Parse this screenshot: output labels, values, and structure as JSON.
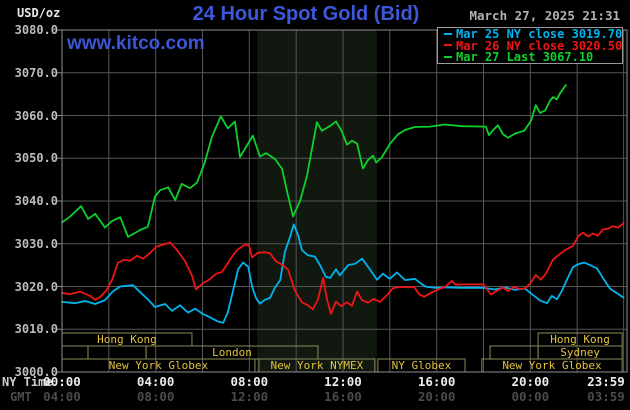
{
  "header": {
    "units_label": "USD/oz",
    "title": "24 Hour Spot Gold (Bid)",
    "datetime": "March 27, 2025 21:31",
    "watermark": "www.kitco.com"
  },
  "legend": {
    "items": [
      {
        "label": "Mar 25 NY close 3019.70",
        "color": "#00b4ee"
      },
      {
        "label": "Mar 26 NY close 3020.50",
        "color": "#ee1515"
      },
      {
        "label": "Mar 27 Last 3067.10",
        "color": "#0ed02a"
      }
    ]
  },
  "axes": {
    "y_ticks": [
      "3080.0",
      "3070.0",
      "3060.0",
      "3050.0",
      "3040.0",
      "3030.0",
      "3020.0",
      "3010.0",
      "3000.0"
    ],
    "x_row1_label": "NY Time",
    "x_row2_label": "GMT",
    "x_row1_ticks": [
      "00:00",
      "04:00",
      "08:00",
      "12:00",
      "16:00",
      "20:00",
      "23:59"
    ],
    "x_row2_ticks": [
      "04:00",
      "08:00",
      "12:00",
      "16:00",
      "20:00",
      "00:00",
      "03:59"
    ],
    "x_tick_hours": [
      0,
      4,
      8,
      12,
      16,
      20,
      23.983
    ]
  },
  "colors": {
    "background": "#000000",
    "grid": "#555555",
    "plot_border": "#8e8e8e",
    "band_fill": "#101810",
    "session_border": "#8b8b5a",
    "session_text": "#e2c23d",
    "title_blue": "#3c59dc",
    "mar25_cyan": "#00b4ee",
    "mar26_red": "#ee1515",
    "mar27_green": "#0ed02a"
  },
  "chart_data": {
    "type": "line",
    "title": "24 Hour Spot Gold (Bid)",
    "ylabel": "USD/oz",
    "ylim": [
      3000,
      3080
    ],
    "x_unit": "minutes NY time 00:00-23:59",
    "grid": true,
    "legend_position": "top-right",
    "highlight_band_hours": [
      8.33,
      13.45
    ],
    "series": [
      {
        "name": "Mar 25 (NY close 3019.70)",
        "color": "#00b4ee",
        "points": [
          [
            0,
            3016.4
          ],
          [
            33,
            3016.1
          ],
          [
            59,
            3016.6
          ],
          [
            85,
            3015.9
          ],
          [
            110,
            3016.8
          ],
          [
            131,
            3018.9
          ],
          [
            149,
            3020.0
          ],
          [
            182,
            3020.3
          ],
          [
            200,
            3018.7
          ],
          [
            220,
            3017.0
          ],
          [
            238,
            3015.2
          ],
          [
            264,
            3015.9
          ],
          [
            282,
            3014.3
          ],
          [
            302,
            3015.6
          ],
          [
            323,
            3013.9
          ],
          [
            341,
            3014.8
          ],
          [
            361,
            3013.6
          ],
          [
            379,
            3012.8
          ],
          [
            400,
            3011.8
          ],
          [
            413,
            3011.5
          ],
          [
            425,
            3014.0
          ],
          [
            441,
            3020.0
          ],
          [
            451,
            3024.0
          ],
          [
            464,
            3025.6
          ],
          [
            477,
            3024.6
          ],
          [
            487,
            3020.0
          ],
          [
            497,
            3017.3
          ],
          [
            507,
            3016.0
          ],
          [
            520,
            3016.9
          ],
          [
            533,
            3017.3
          ],
          [
            546,
            3019.8
          ],
          [
            559,
            3021.5
          ],
          [
            571,
            3028.0
          ],
          [
            584,
            3031.5
          ],
          [
            594,
            3034.5
          ],
          [
            605,
            3032.0
          ],
          [
            615,
            3028.5
          ],
          [
            630,
            3027.3
          ],
          [
            648,
            3027.0
          ],
          [
            661,
            3025.0
          ],
          [
            676,
            3022.3
          ],
          [
            687,
            3022.0
          ],
          [
            702,
            3024.0
          ],
          [
            712,
            3022.6
          ],
          [
            733,
            3025.0
          ],
          [
            751,
            3025.3
          ],
          [
            769,
            3026.5
          ],
          [
            789,
            3024.0
          ],
          [
            807,
            3021.6
          ],
          [
            822,
            3023.0
          ],
          [
            840,
            3021.8
          ],
          [
            858,
            3023.3
          ],
          [
            879,
            3021.5
          ],
          [
            904,
            3021.8
          ],
          [
            930,
            3020.0
          ],
          [
            956,
            3019.7
          ],
          [
            981,
            3019.8
          ],
          [
            1020,
            3019.7
          ],
          [
            1080,
            3019.7
          ],
          [
            1109,
            3019.3
          ],
          [
            1135,
            3019.8
          ],
          [
            1161,
            3019.2
          ],
          [
            1186,
            3019.5
          ],
          [
            1207,
            3018.0
          ],
          [
            1225,
            3016.7
          ],
          [
            1243,
            3016.1
          ],
          [
            1255,
            3017.8
          ],
          [
            1268,
            3017.0
          ],
          [
            1281,
            3019.0
          ],
          [
            1296,
            3022.0
          ],
          [
            1309,
            3024.5
          ],
          [
            1322,
            3025.2
          ],
          [
            1338,
            3025.6
          ],
          [
            1353,
            3025.0
          ],
          [
            1371,
            3024.2
          ],
          [
            1386,
            3022.0
          ],
          [
            1404,
            3019.5
          ],
          [
            1422,
            3018.4
          ],
          [
            1439,
            3017.4
          ]
        ]
      },
      {
        "name": "Mar 26 (NY close 3020.50)",
        "color": "#ee1515",
        "points": [
          [
            0,
            3018.5
          ],
          [
            20,
            3018.2
          ],
          [
            46,
            3018.8
          ],
          [
            72,
            3017.8
          ],
          [
            85,
            3016.9
          ],
          [
            97,
            3017.5
          ],
          [
            113,
            3019.0
          ],
          [
            128,
            3021.5
          ],
          [
            143,
            3025.5
          ],
          [
            159,
            3026.3
          ],
          [
            174,
            3026.0
          ],
          [
            192,
            3027.2
          ],
          [
            208,
            3026.5
          ],
          [
            225,
            3027.8
          ],
          [
            241,
            3029.3
          ],
          [
            259,
            3029.8
          ],
          [
            277,
            3030.3
          ],
          [
            292,
            3028.8
          ],
          [
            315,
            3026.0
          ],
          [
            333,
            3022.5
          ],
          [
            343,
            3019.3
          ],
          [
            359,
            3020.6
          ],
          [
            379,
            3021.7
          ],
          [
            395,
            3023.0
          ],
          [
            410,
            3023.4
          ],
          [
            430,
            3026.2
          ],
          [
            448,
            3028.5
          ],
          [
            469,
            3029.8
          ],
          [
            479,
            3029.7
          ],
          [
            487,
            3026.8
          ],
          [
            502,
            3027.9
          ],
          [
            520,
            3028.0
          ],
          [
            533,
            3027.8
          ],
          [
            548,
            3025.9
          ],
          [
            564,
            3025.1
          ],
          [
            579,
            3024.0
          ],
          [
            597,
            3019.0
          ],
          [
            615,
            3016.3
          ],
          [
            630,
            3015.6
          ],
          [
            643,
            3014.7
          ],
          [
            656,
            3017.0
          ],
          [
            669,
            3022.0
          ],
          [
            679,
            3017.0
          ],
          [
            689,
            3013.6
          ],
          [
            702,
            3016.5
          ],
          [
            715,
            3015.4
          ],
          [
            730,
            3016.3
          ],
          [
            743,
            3015.5
          ],
          [
            756,
            3018.8
          ],
          [
            769,
            3016.8
          ],
          [
            784,
            3016.2
          ],
          [
            799,
            3017.1
          ],
          [
            815,
            3016.4
          ],
          [
            833,
            3018.0
          ],
          [
            848,
            3019.6
          ],
          [
            866,
            3019.9
          ],
          [
            887,
            3019.8
          ],
          [
            902,
            3019.9
          ],
          [
            915,
            3018.2
          ],
          [
            928,
            3017.6
          ],
          [
            943,
            3018.4
          ],
          [
            961,
            3019.2
          ],
          [
            981,
            3019.9
          ],
          [
            999,
            3021.3
          ],
          [
            1009,
            3020.4
          ],
          [
            1020,
            3020.5
          ],
          [
            1080,
            3020.5
          ],
          [
            1099,
            3018.1
          ],
          [
            1114,
            3019.0
          ],
          [
            1130,
            3019.8
          ],
          [
            1143,
            3018.9
          ],
          [
            1158,
            3019.9
          ],
          [
            1173,
            3019.4
          ],
          [
            1188,
            3019.6
          ],
          [
            1202,
            3021.0
          ],
          [
            1214,
            3022.7
          ],
          [
            1227,
            3021.6
          ],
          [
            1240,
            3023.0
          ],
          [
            1258,
            3026.3
          ],
          [
            1276,
            3027.6
          ],
          [
            1291,
            3028.6
          ],
          [
            1309,
            3029.5
          ],
          [
            1324,
            3031.9
          ],
          [
            1335,
            3032.6
          ],
          [
            1348,
            3031.7
          ],
          [
            1360,
            3032.4
          ],
          [
            1373,
            3031.9
          ],
          [
            1386,
            3033.3
          ],
          [
            1401,
            3033.6
          ],
          [
            1411,
            3034.1
          ],
          [
            1424,
            3033.8
          ],
          [
            1437,
            3034.6
          ],
          [
            1439,
            3035.0
          ]
        ]
      },
      {
        "name": "Mar 27 (Last 3067.10)",
        "color": "#0ed02a",
        "points": [
          [
            0,
            3035.0
          ],
          [
            20,
            3036.3
          ],
          [
            49,
            3038.8
          ],
          [
            67,
            3035.8
          ],
          [
            85,
            3037.0
          ],
          [
            110,
            3033.8
          ],
          [
            128,
            3035.3
          ],
          [
            149,
            3036.2
          ],
          [
            169,
            3031.6
          ],
          [
            200,
            3033.2
          ],
          [
            220,
            3034.0
          ],
          [
            238,
            3041.0
          ],
          [
            251,
            3042.5
          ],
          [
            272,
            3043.2
          ],
          [
            290,
            3040.2
          ],
          [
            307,
            3044.0
          ],
          [
            328,
            3043.0
          ],
          [
            346,
            3044.3
          ],
          [
            366,
            3049.0
          ],
          [
            384,
            3055.0
          ],
          [
            407,
            3059.8
          ],
          [
            425,
            3057.0
          ],
          [
            443,
            3058.6
          ],
          [
            456,
            3050.3
          ],
          [
            474,
            3053.0
          ],
          [
            489,
            3055.3
          ],
          [
            507,
            3050.4
          ],
          [
            523,
            3051.2
          ],
          [
            546,
            3049.8
          ],
          [
            564,
            3047.5
          ],
          [
            576,
            3042.5
          ],
          [
            592,
            3036.4
          ],
          [
            610,
            3040.0
          ],
          [
            628,
            3046.0
          ],
          [
            640,
            3052.0
          ],
          [
            653,
            3058.4
          ],
          [
            666,
            3056.4
          ],
          [
            687,
            3057.6
          ],
          [
            702,
            3058.6
          ],
          [
            717,
            3056.3
          ],
          [
            730,
            3053.2
          ],
          [
            743,
            3054.1
          ],
          [
            756,
            3053.4
          ],
          [
            771,
            3047.6
          ],
          [
            784,
            3049.6
          ],
          [
            797,
            3050.6
          ],
          [
            805,
            3049.0
          ],
          [
            820,
            3050.3
          ],
          [
            840,
            3053.3
          ],
          [
            861,
            3055.6
          ],
          [
            879,
            3056.6
          ],
          [
            904,
            3057.3
          ],
          [
            943,
            3057.4
          ],
          [
            981,
            3057.9
          ],
          [
            1025,
            3057.5
          ],
          [
            1086,
            3057.4
          ],
          [
            1094,
            3055.4
          ],
          [
            1107,
            3056.8
          ],
          [
            1117,
            3057.7
          ],
          [
            1130,
            3055.6
          ],
          [
            1143,
            3054.8
          ],
          [
            1161,
            3055.8
          ],
          [
            1184,
            3056.4
          ],
          [
            1202,
            3058.8
          ],
          [
            1214,
            3062.4
          ],
          [
            1225,
            3060.6
          ],
          [
            1238,
            3061.2
          ],
          [
            1250,
            3063.4
          ],
          [
            1258,
            3064.3
          ],
          [
            1268,
            3063.8
          ],
          [
            1276,
            3065.2
          ],
          [
            1291,
            3067.1
          ]
        ]
      }
    ],
    "session_rows": [
      [
        {
          "t0": 0,
          "t1": 5.55,
          "label": "Hong Kong"
        },
        {
          "t0": 20.33,
          "t1": 23.92,
          "label": "Hong Kong"
        }
      ],
      [
        {
          "t0": 0,
          "t1": 1.11,
          "label": ""
        },
        {
          "t0": 1.11,
          "t1": 3.59,
          "label": ""
        },
        {
          "t0": 3.59,
          "t1": 10.93,
          "label": "London"
        },
        {
          "t0": 18.28,
          "t1": 20.33,
          "label": ""
        },
        {
          "t0": 20.33,
          "t1": 23.92,
          "label": "Sydney"
        }
      ],
      [
        {
          "t0": 0,
          "t1": 8.24,
          "label": "New York Globex"
        },
        {
          "t0": 8.41,
          "t1": 13.36,
          "label": "New York NYMEX"
        },
        {
          "t0": 13.49,
          "t1": 17.21,
          "label": "NY Globex"
        },
        {
          "t0": 17.93,
          "t1": 23.92,
          "label": "New York Globex"
        }
      ]
    ]
  }
}
